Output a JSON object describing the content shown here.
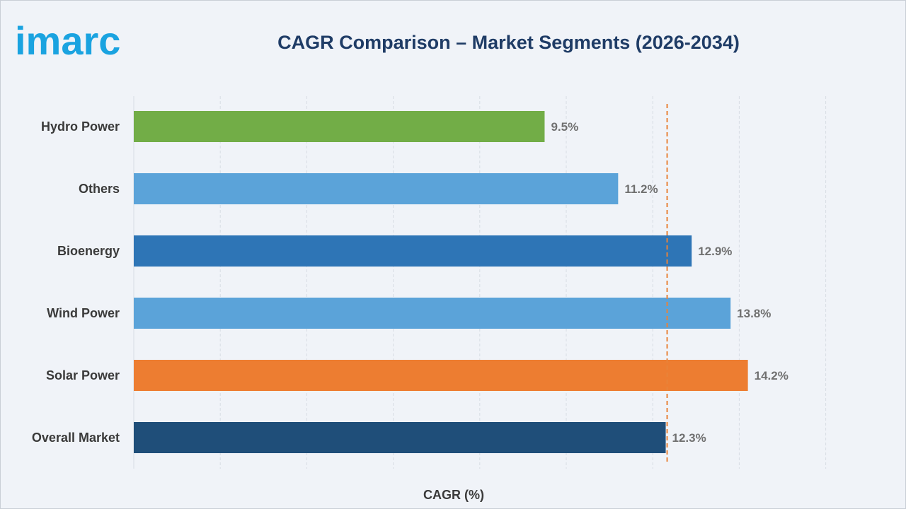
{
  "header": {
    "logo_text": "imarc",
    "title": "CAGR Comparison – Market Segments (2026-2034)"
  },
  "colors": {
    "logo": "#1aa3e0",
    "title": "#1f3c66",
    "reference_line": "#e8833a",
    "grid": "#d8dde4"
  },
  "chart_data": {
    "type": "bar",
    "orientation": "horizontal",
    "title": "CAGR Comparison – Market Segments (2026-2034)",
    "xlabel": "CAGR (%)",
    "ylabel": "",
    "xlim": [
      0,
      16
    ],
    "grid": true,
    "legend": "none",
    "categories": [
      "Hydro Power",
      "Others",
      "Bioenergy",
      "Wind Power",
      "Solar Power",
      "Overall Market"
    ],
    "values": [
      9.5,
      11.2,
      12.9,
      13.8,
      14.2,
      12.3
    ],
    "value_labels": [
      "9.5%",
      "11.2%",
      "12.9%",
      "13.8%",
      "14.2%",
      "12.3%"
    ],
    "bar_colors": [
      "#72ad47",
      "#5ba3d9",
      "#2e75b6",
      "#5ba3d9",
      "#ed7d31",
      "#1f4e79"
    ],
    "reference_line": {
      "value": 12.3,
      "style": "dashed"
    }
  }
}
